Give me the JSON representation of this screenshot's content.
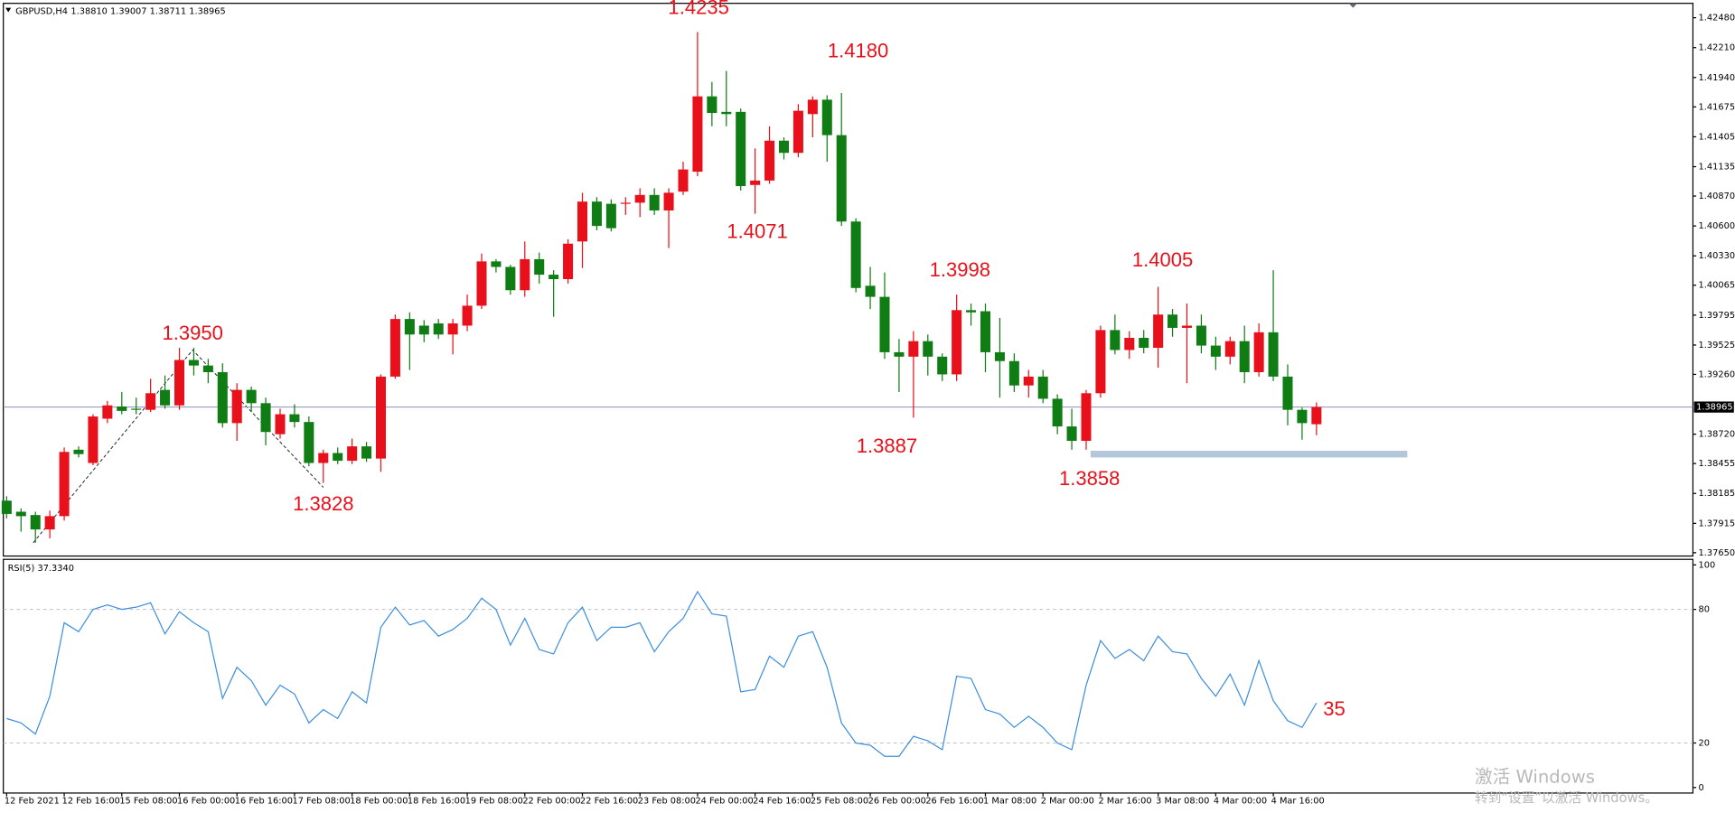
{
  "chart_data": [
    {
      "type": "candlestick",
      "title": "GBPUSD,H4",
      "ohlc_text": "1.38810 1.39007 1.38711 1.38965",
      "categories": [
        "12 Feb 2021",
        null,
        null,
        null,
        "12 Feb 16:00",
        null,
        null,
        null,
        "15 Feb 08:00",
        null,
        null,
        null,
        "16 Feb 00:00",
        null,
        null,
        null,
        "16 Feb 16:00",
        null,
        null,
        null,
        "17 Feb 08:00",
        null,
        null,
        null,
        "18 Feb 00:00",
        null,
        null,
        null,
        "18 Feb 16:00",
        null,
        null,
        null,
        "19 Feb 08:00",
        null,
        null,
        null,
        "22 Feb 00:00",
        null,
        null,
        null,
        "22 Feb 16:00",
        null,
        null,
        null,
        "23 Feb 08:00",
        null,
        null,
        null,
        "24 Feb 00:00",
        null,
        null,
        null,
        "24 Feb 16:00",
        null,
        null,
        null,
        "25 Feb 08:00",
        null,
        null,
        null,
        "26 Feb 00:00",
        null,
        null,
        null,
        "26 Feb 16:00",
        null,
        null,
        null,
        "1 Mar 08:00",
        null,
        null,
        null,
        "2 Mar 00:00",
        null,
        null,
        null,
        "2 Mar 16:00",
        null,
        null,
        null,
        "3 Mar 08:00",
        null,
        null,
        null,
        "4 Mar 00:00",
        null,
        null,
        null,
        "4 Mar 16:00",
        null,
        null,
        null
      ],
      "open": [
        1.3812,
        1.3802,
        1.3799,
        1.3786,
        1.3798,
        1.3858,
        1.3846,
        1.3886,
        1.3897,
        1.3895,
        1.3894,
        1.3912,
        1.3898,
        1.3939,
        1.3934,
        1.3928,
        1.3882,
        1.3912,
        1.39,
        1.3872,
        1.389,
        1.3883,
        1.3846,
        1.3855,
        1.3848,
        1.3861,
        1.385,
        1.3924,
        1.3976,
        1.397,
        1.3972,
        1.3962,
        1.397,
        1.3988,
        1.4028,
        1.4023,
        1.4002,
        1.403,
        1.4016,
        1.4012,
        1.4046,
        1.4082,
        1.408,
        1.4081,
        1.4081,
        1.4088,
        1.4074,
        1.4091,
        1.4109,
        1.4177,
        1.4163,
        1.4163,
        1.4097,
        1.4101,
        1.4137,
        1.4126,
        1.4161,
        1.4174,
        1.4142,
        1.4064,
        1.4006,
        1.3996,
        1.3946,
        1.3942,
        1.3956,
        1.3942,
        1.3926,
        1.3984,
        1.3983,
        1.3946,
        1.3938,
        1.3916,
        1.3924,
        1.3904,
        1.3879,
        1.3866,
        1.3909,
        1.3966,
        1.3948,
        1.3959,
        1.395,
        1.398,
        1.3968,
        1.397,
        1.3952,
        1.3942,
        1.3956,
        1.3928,
        1.3964,
        1.3924,
        1.3894,
        1.3881
      ],
      "high": [
        1.3816,
        1.3805,
        1.3802,
        1.3803,
        1.386,
        1.3861,
        1.389,
        1.3902,
        1.391,
        1.3905,
        1.3922,
        1.3925,
        1.395,
        1.395,
        1.394,
        1.3936,
        1.3918,
        1.3915,
        1.3905,
        1.3895,
        1.3899,
        1.3888,
        1.3858,
        1.386,
        1.3868,
        1.3865,
        1.3926,
        1.398,
        1.3982,
        1.3975,
        1.3976,
        1.3976,
        1.3998,
        1.4035,
        1.403,
        1.4025,
        1.4046,
        1.4036,
        1.402,
        1.4048,
        1.409,
        1.4086,
        1.4084,
        1.4086,
        1.4094,
        1.4094,
        1.4094,
        1.4118,
        1.4235,
        1.419,
        1.42,
        1.4166,
        1.413,
        1.415,
        1.414,
        1.417,
        1.4177,
        1.4178,
        1.418,
        1.4067,
        1.4023,
        1.4018,
        1.3958,
        1.3965,
        1.3962,
        1.3945,
        1.3998,
        1.399,
        1.399,
        1.3977,
        1.3945,
        1.393,
        1.393,
        1.3908,
        1.3895,
        1.3912,
        1.397,
        1.398,
        1.3965,
        1.3966,
        1.4005,
        1.3985,
        1.399,
        1.398,
        1.396,
        1.396,
        1.397,
        1.3972,
        1.402,
        1.3935,
        1.3896,
        1.39007
      ],
      "low": [
        1.3796,
        1.3784,
        1.3774,
        1.3778,
        1.3794,
        1.3851,
        1.3844,
        1.3882,
        1.389,
        1.389,
        1.3892,
        1.3895,
        1.3894,
        1.3925,
        1.3918,
        1.3878,
        1.3866,
        1.3892,
        1.3862,
        1.3868,
        1.3878,
        1.3843,
        1.3828,
        1.3845,
        1.3845,
        1.3847,
        1.3838,
        1.3922,
        1.393,
        1.3955,
        1.3958,
        1.3944,
        1.3965,
        1.3985,
        1.4018,
        1.3998,
        1.3996,
        1.4008,
        1.3978,
        1.4008,
        1.4022,
        1.4056,
        1.4055,
        1.407,
        1.4068,
        1.407,
        1.404,
        1.4088,
        1.4105,
        1.415,
        1.415,
        1.4092,
        1.4071,
        1.4098,
        1.412,
        1.4122,
        1.414,
        1.4118,
        1.406,
        1.4,
        1.3985,
        1.394,
        1.391,
        1.3887,
        1.3925,
        1.392,
        1.392,
        1.397,
        1.3928,
        1.3905,
        1.391,
        1.3905,
        1.39,
        1.3872,
        1.3858,
        1.3858,
        1.3905,
        1.3944,
        1.394,
        1.3945,
        1.3932,
        1.396,
        1.3918,
        1.3945,
        1.393,
        1.3935,
        1.3918,
        1.3924,
        1.392,
        1.388,
        1.3867,
        1.38711
      ],
      "close": [
        1.38,
        1.3798,
        1.3786,
        1.3798,
        1.3856,
        1.3854,
        1.3888,
        1.3898,
        1.3893,
        1.3894,
        1.3909,
        1.3898,
        1.3939,
        1.3934,
        1.3928,
        1.3882,
        1.3912,
        1.39,
        1.3874,
        1.389,
        1.3883,
        1.3846,
        1.3855,
        1.3848,
        1.3861,
        1.385,
        1.3924,
        1.3976,
        1.3962,
        1.3962,
        1.3962,
        1.3972,
        1.3988,
        1.4028,
        1.4023,
        1.4002,
        1.403,
        1.4016,
        1.4012,
        1.4044,
        1.4082,
        1.406,
        1.4058,
        1.4081,
        1.4088,
        1.4074,
        1.409,
        1.4111,
        1.4177,
        1.4162,
        1.4161,
        1.4096,
        1.4101,
        1.4137,
        1.4126,
        1.4164,
        1.4174,
        1.4142,
        1.4064,
        1.4004,
        1.3996,
        1.3946,
        1.3942,
        1.3956,
        1.3942,
        1.3926,
        1.3984,
        1.3982,
        1.3946,
        1.3938,
        1.3916,
        1.3924,
        1.3904,
        1.3879,
        1.3866,
        1.3909,
        1.3966,
        1.3948,
        1.3959,
        1.395,
        1.398,
        1.3968,
        1.397,
        1.3952,
        1.3942,
        1.3956,
        1.3928,
        1.3964,
        1.3924,
        1.3894,
        1.3882,
        1.38965
      ],
      "up_color": "#e8101a",
      "down_color": "#0f7d14",
      "ylim": [
        1.3762,
        1.4261
      ],
      "yticks": [
        {
          "value": 1.4248,
          "label": "1.42480"
        },
        {
          "value": 1.4221,
          "label": "1.42210"
        },
        {
          "value": 1.4194,
          "label": "1.41940"
        },
        {
          "value": 1.41675,
          "label": "1.41675"
        },
        {
          "value": 1.41405,
          "label": "1.41405"
        },
        {
          "value": 1.41135,
          "label": "1.41135"
        },
        {
          "value": 1.4087,
          "label": "1.40870"
        },
        {
          "value": 1.406,
          "label": "1.40600"
        },
        {
          "value": 1.4033,
          "label": "1.40330"
        },
        {
          "value": 1.40065,
          "label": "1.40065"
        },
        {
          "value": 1.39795,
          "label": "1.39795"
        },
        {
          "value": 1.39525,
          "label": "1.39525"
        },
        {
          "value": 1.3926,
          "label": "1.39260"
        },
        {
          "value": 1.3872,
          "label": "1.38720"
        },
        {
          "value": 1.38455,
          "label": "1.38455"
        },
        {
          "value": 1.38185,
          "label": "1.38185"
        },
        {
          "value": 1.37915,
          "label": "1.37915"
        },
        {
          "value": 1.3765,
          "label": "1.37650"
        }
      ],
      "current_price": {
        "value": 1.38965,
        "label": "1.38965"
      },
      "support_level": 1.3854,
      "support_color": "#b4c6da",
      "annotations": [
        "1.4235",
        "1.4180",
        "1.4071",
        "1.3998",
        "1.4005",
        "1.3950",
        "1.3828",
        "1.3887",
        "1.3858"
      ]
    },
    {
      "type": "line",
      "title": "RSI(5) 37.3340",
      "color": "#3d8fe0",
      "values": [
        31,
        29,
        24,
        41,
        74,
        70,
        80,
        82,
        80,
        81,
        83,
        69,
        79,
        74,
        70,
        40,
        54,
        48,
        37,
        46,
        42,
        29,
        35,
        31,
        43,
        38,
        72,
        81,
        73,
        75,
        68,
        71,
        76,
        85,
        80,
        64,
        76,
        62,
        60,
        74,
        81,
        66,
        72,
        72,
        74,
        61,
        70,
        76,
        88,
        78,
        77,
        43,
        44,
        59,
        54,
        68,
        70,
        54,
        29,
        20,
        19,
        14,
        14,
        23,
        21,
        17,
        50,
        49,
        35,
        33,
        27,
        32,
        27,
        20,
        17,
        46,
        66,
        58,
        62,
        57,
        68,
        61,
        60,
        49,
        41,
        51,
        37,
        57,
        39,
        30,
        27,
        38
      ],
      "ylim": [
        0,
        100
      ],
      "yticks": [
        0,
        20,
        80,
        100
      ],
      "levels": [
        20,
        80
      ],
      "annotations": [
        "35"
      ]
    }
  ],
  "watermark": {
    "line1": "激活 Windows",
    "line2": "转到“设置”以激活 Windows。"
  }
}
